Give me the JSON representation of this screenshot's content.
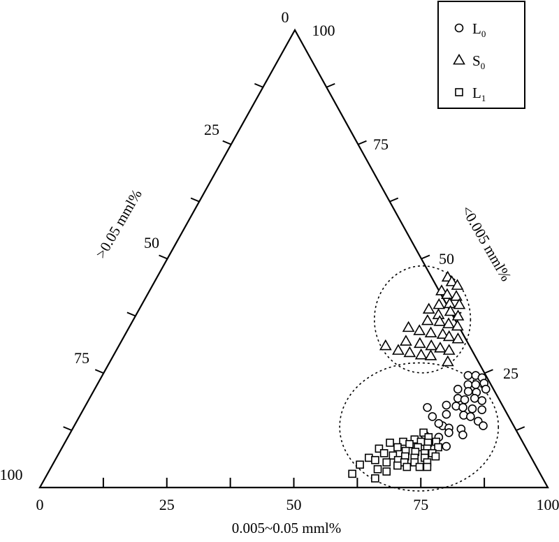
{
  "chart_data": {
    "type": "scatter",
    "subtype": "ternary",
    "axes": {
      "bottom": {
        "label": "0.005~0.05 mml%",
        "ticks": [
          "0",
          "25",
          "50",
          "75",
          "100"
        ]
      },
      "left": {
        "label": ">0.05 mml%",
        "ticks": [
          "0",
          "25",
          "50",
          "75",
          "100"
        ]
      },
      "right": {
        "label": "<0.005 mml%",
        "ticks": [
          "25",
          "50",
          "75",
          "100"
        ]
      }
    },
    "legend": {
      "placement": "top-right",
      "entries": [
        {
          "name": "L",
          "sub": "0",
          "marker": "circle"
        },
        {
          "name": "S",
          "sub": "0",
          "marker": "triangle"
        },
        {
          "name": "L",
          "sub": "1",
          "marker": "square"
        }
      ]
    },
    "series": [
      {
        "name": "L0",
        "marker": "circle",
        "points": [
          [
            72.0,
            24.5
          ],
          [
            73.5,
            24.5
          ],
          [
            75.0,
            24.0
          ],
          [
            73.0,
            22.5
          ],
          [
            74.5,
            22.5
          ],
          [
            76.0,
            22.8
          ],
          [
            71.5,
            21.5
          ],
          [
            73.8,
            21.0
          ],
          [
            75.5,
            20.8
          ],
          [
            77.0,
            21.5
          ],
          [
            72.5,
            19.5
          ],
          [
            74.0,
            19.2
          ],
          [
            75.8,
            19.5
          ],
          [
            77.5,
            19.0
          ],
          [
            71.0,
            18.0
          ],
          [
            73.0,
            17.8
          ],
          [
            74.5,
            17.5
          ],
          [
            76.5,
            17.2
          ],
          [
            78.5,
            17.0
          ],
          [
            72.0,
            16.0
          ],
          [
            75.5,
            15.8
          ],
          [
            77.0,
            15.5
          ],
          [
            79.0,
            14.5
          ],
          [
            80.5,
            13.5
          ],
          [
            72.5,
            13.5
          ],
          [
            74.0,
            13.0
          ],
          [
            76.5,
            12.8
          ],
          [
            67.5,
            17.5
          ],
          [
            69.5,
            15.5
          ],
          [
            71.5,
            14.0
          ],
          [
            74.5,
            12.0
          ],
          [
            77.5,
            11.5
          ],
          [
            73.0,
            11.0
          ],
          [
            75.5,
            9.0
          ],
          [
            70.0,
            11.5
          ]
        ]
      },
      {
        "name": "S0",
        "marker": "triangle",
        "points": [
          [
            57.2,
            46.0
          ],
          [
            58.5,
            45.0
          ],
          [
            60.0,
            44.2
          ],
          [
            57.5,
            43.0
          ],
          [
            59.0,
            42.2
          ],
          [
            61.0,
            41.8
          ],
          [
            60.5,
            40.2
          ],
          [
            58.5,
            40.0
          ],
          [
            62.5,
            40.0
          ],
          [
            57.0,
            39.0
          ],
          [
            61.5,
            38.5
          ],
          [
            59.5,
            37.8
          ],
          [
            63.5,
            37.5
          ],
          [
            58.0,
            36.5
          ],
          [
            60.5,
            36.3
          ],
          [
            62.5,
            35.8
          ],
          [
            64.5,
            35.3
          ],
          [
            55.0,
            35.0
          ],
          [
            57.5,
            34.3
          ],
          [
            60.0,
            33.8
          ],
          [
            62.5,
            33.5
          ],
          [
            64.0,
            33.0
          ],
          [
            66.0,
            32.5
          ],
          [
            56.0,
            32.0
          ],
          [
            59.0,
            31.5
          ],
          [
            61.5,
            31.0
          ],
          [
            63.5,
            30.5
          ],
          [
            65.5,
            30.0
          ],
          [
            52.5,
            31.0
          ],
          [
            55.5,
            30.0
          ],
          [
            58.0,
            29.5
          ],
          [
            60.5,
            29.0
          ],
          [
            62.5,
            28.8
          ],
          [
            66.5,
            27.5
          ]
        ]
      },
      {
        "name": "L1",
        "marker": "square",
        "points": [
          [
            69.5,
            12.0
          ],
          [
            71.0,
            11.0
          ],
          [
            68.5,
            10.5
          ],
          [
            70.0,
            10.0
          ],
          [
            71.5,
            9.8
          ],
          [
            73.0,
            10.0
          ],
          [
            66.5,
            10.0
          ],
          [
            68.0,
            9.5
          ],
          [
            70.0,
            8.8
          ],
          [
            72.0,
            8.5
          ],
          [
            74.0,
            8.8
          ],
          [
            64.0,
            9.8
          ],
          [
            66.0,
            8.8
          ],
          [
            68.0,
            8.0
          ],
          [
            70.0,
            7.8
          ],
          [
            72.0,
            7.5
          ],
          [
            73.5,
            7.5
          ],
          [
            62.5,
            8.5
          ],
          [
            64.0,
            7.5
          ],
          [
            66.0,
            7.0
          ],
          [
            68.5,
            6.8
          ],
          [
            70.5,
            6.5
          ],
          [
            72.5,
            6.5
          ],
          [
            74.5,
            6.8
          ],
          [
            61.5,
            6.5
          ],
          [
            63.0,
            6.0
          ],
          [
            67.5,
            6.0
          ],
          [
            69.0,
            5.5
          ],
          [
            71.0,
            5.5
          ],
          [
            73.5,
            5.5
          ],
          [
            60.5,
            5.0
          ],
          [
            65.5,
            5.5
          ],
          [
            68.0,
            4.8
          ],
          [
            70.0,
            4.5
          ],
          [
            72.5,
            4.5
          ],
          [
            74.0,
            4.5
          ],
          [
            64.5,
            4.0
          ],
          [
            66.5,
            3.5
          ],
          [
            60.0,
            3.0
          ],
          [
            65.0,
            2.0
          ]
        ]
      }
    ],
    "annotations": [
      {
        "type": "dashed-ellipse",
        "encloses": "S0"
      },
      {
        "type": "dashed-ellipse",
        "encloses": [
          "L0",
          "L1"
        ]
      }
    ]
  }
}
